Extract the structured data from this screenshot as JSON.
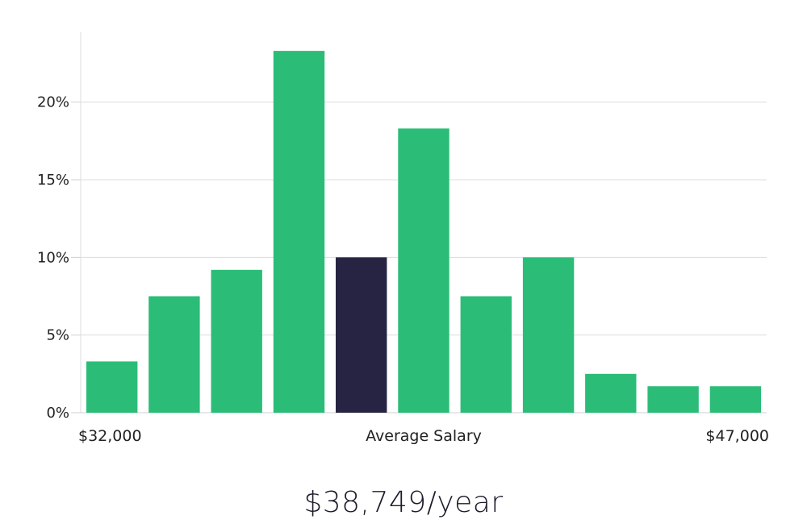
{
  "chart_data": {
    "type": "bar",
    "title": "",
    "ylabel": "",
    "xlabel": "Average Salary",
    "x_min_label": "$32,000",
    "x_max_label": "$47,000",
    "ylim": [
      0,
      24.5
    ],
    "y_ticks": [
      0,
      5,
      10,
      15,
      20
    ],
    "y_tick_labels": [
      "0%",
      "5%",
      "10%",
      "15%",
      "20%"
    ],
    "grid": true,
    "values": [
      3.3,
      7.5,
      9.2,
      23.3,
      10.0,
      18.3,
      7.5,
      10.0,
      2.5,
      1.7,
      1.7
    ],
    "highlight_index": 4,
    "bar_color": "#2bbd77",
    "highlight_color": "#272343"
  },
  "summary": {
    "salary_text": "$38,749/year"
  }
}
